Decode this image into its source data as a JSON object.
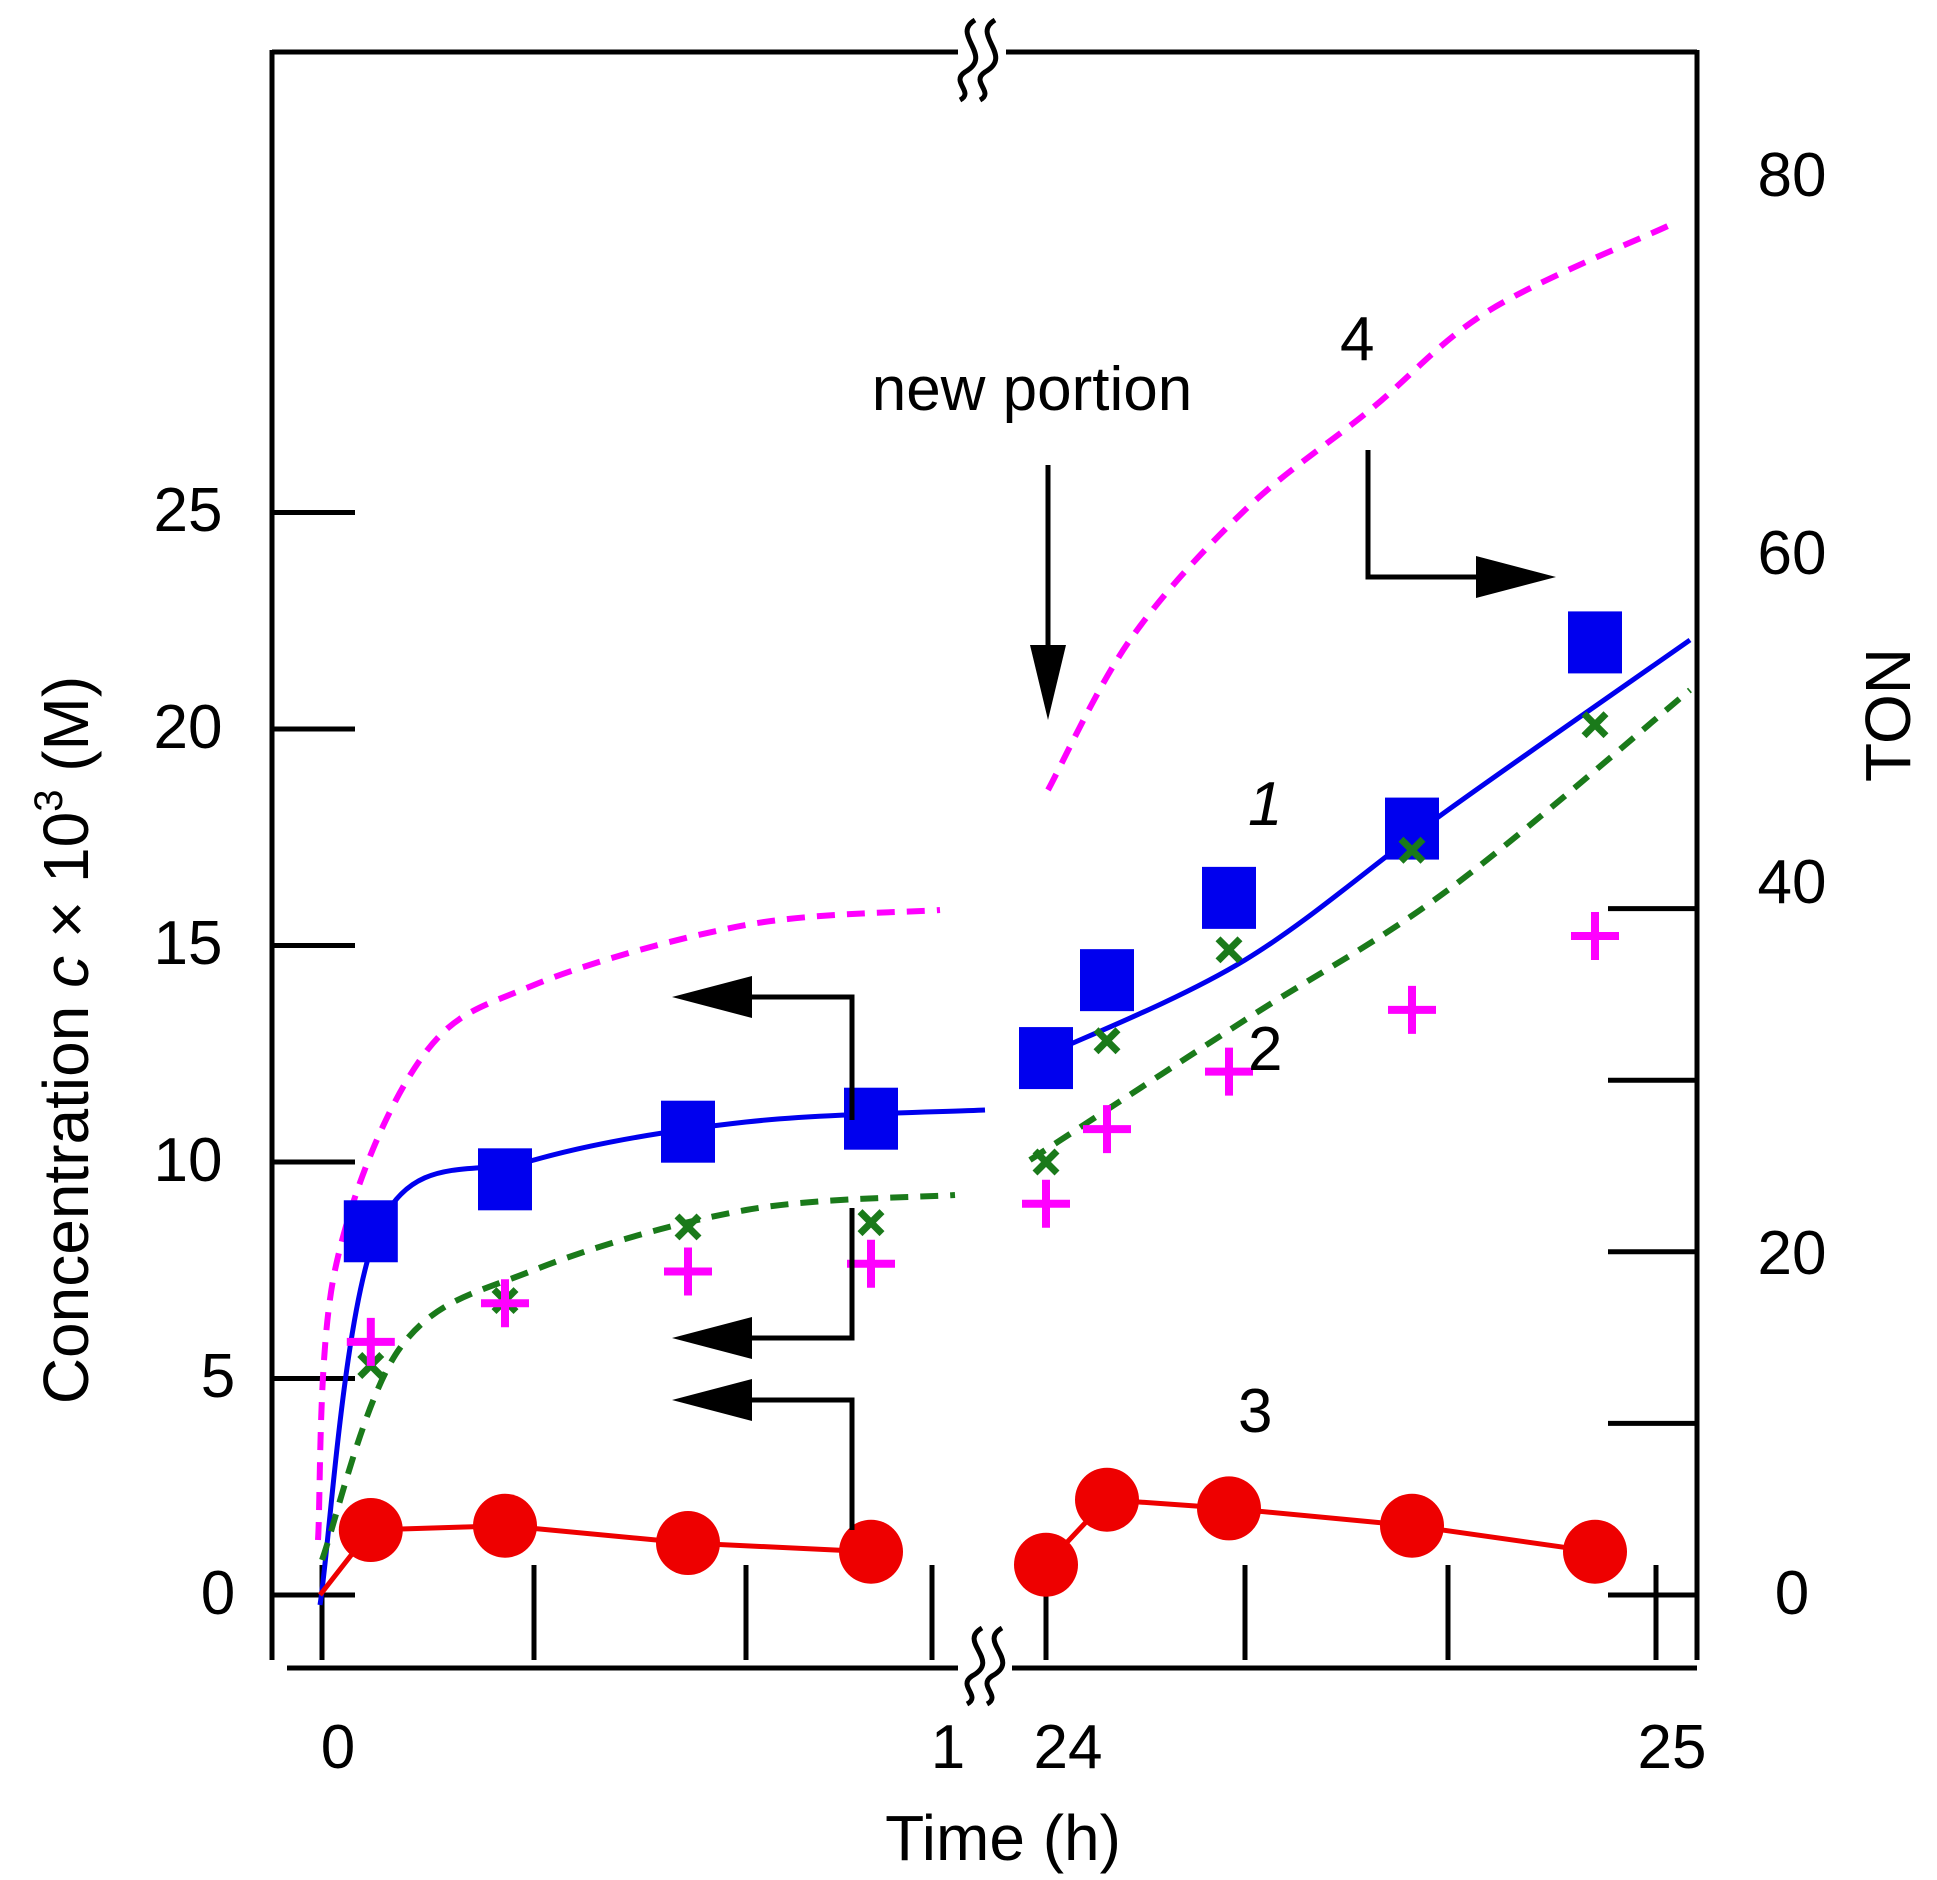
{
  "chart_data": {
    "type": "scatter",
    "title": "",
    "xlabel": "Time (h)",
    "ylabel_left": {
      "prefix": "Concentration ",
      "var": "c",
      "mid": " × 10",
      "sup": "3",
      "suffix": " (M)"
    },
    "ylabel_right": "TON",
    "x_ticks": [
      "0",
      "1",
      "24",
      "25"
    ],
    "y_left_ticks": [
      "0",
      "5",
      "10",
      "15",
      "20",
      "25"
    ],
    "y_right_ticks": [
      "0",
      "20",
      "40",
      "60",
      "80"
    ],
    "ylim_left": [
      0,
      25
    ],
    "ylim_right": [
      0,
      80
    ],
    "x_segments": [
      [
        0,
        1
      ],
      [
        24,
        25
      ]
    ],
    "annotation": "new portion",
    "series": [
      {
        "name": "1",
        "label": "1",
        "italic": true,
        "marker": "square",
        "color": "#0000ee",
        "line": "solid",
        "x": [
          0.08,
          0.3,
          0.6,
          0.9,
          24.0,
          24.1,
          24.3,
          24.6,
          24.9
        ],
        "y": [
          8.4,
          9.6,
          10.7,
          11.0,
          12.4,
          14.2,
          16.1,
          17.7,
          22.0
        ]
      },
      {
        "name": "2",
        "label": "2",
        "italic": false,
        "marker": "x",
        "color": "#1a7a1a",
        "line": "dashed",
        "x": [
          0.08,
          0.3,
          0.6,
          0.9,
          24.0,
          24.1,
          24.3,
          24.6,
          24.9
        ],
        "y": [
          5.3,
          6.8,
          8.5,
          8.6,
          10.0,
          12.8,
          14.9,
          17.2,
          20.1
        ]
      },
      {
        "name": "3",
        "label": "3",
        "italic": false,
        "marker": "circle",
        "color": "#ee0000",
        "line": "solid",
        "x": [
          0.08,
          0.3,
          0.6,
          0.9,
          24.0,
          24.1,
          24.3,
          24.6,
          24.9
        ],
        "y": [
          1.5,
          1.6,
          1.2,
          1.0,
          0.7,
          2.2,
          2.0,
          1.6,
          1.0
        ]
      },
      {
        "name": "4",
        "label": "4",
        "italic": false,
        "marker": "plus",
        "color": "#ff00ff",
        "line": "dashed",
        "axis": "right",
        "x": [
          0.08,
          0.3,
          0.6,
          0.9,
          24.0,
          24.1,
          24.3,
          24.6,
          24.9
        ],
        "y": [
          29.5,
          34.0,
          37.7,
          38.6,
          45.6,
          54.3,
          61.0,
          68.2,
          76.8
        ]
      }
    ]
  }
}
